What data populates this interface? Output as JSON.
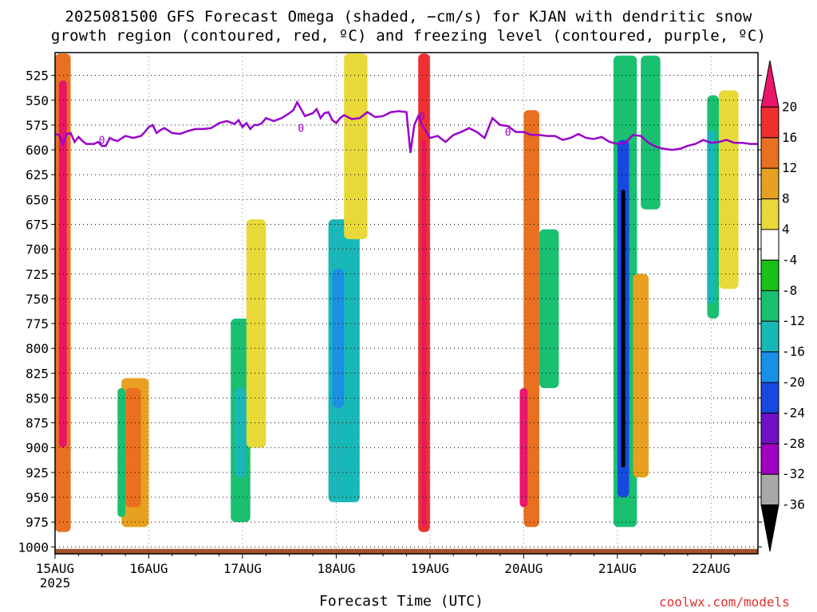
{
  "title_line1": "2025081500 GFS Forecast Omega (shaded, −cm/s) for KJAN with dendritic snow",
  "title_line2": "growth region (contoured, red, ºC) and freezing level (contoured, purple, ºC)",
  "xlabel": "Forecast Time (UTC)",
  "credit": "coolwx.com/models",
  "chart_data": {
    "type": "heatmap",
    "title": "2025081500 GFS Forecast Omega (shaded, −cm/s) for KJAN with dendritic snow growth region (contoured, red, ºC) and freezing level (contoured, purple, ºC)",
    "xlabel": "Forecast Time (UTC)",
    "ylabel": "",
    "x_ticks": [
      "15AUG",
      "16AUG",
      "17AUG",
      "18AUG",
      "19AUG",
      "20AUG",
      "21AUG",
      "22AUG"
    ],
    "x_year_label": "2025",
    "x_range_hours": [
      0,
      180
    ],
    "y_ticks": [
      525,
      550,
      575,
      600,
      625,
      650,
      675,
      700,
      725,
      750,
      775,
      800,
      825,
      850,
      875,
      900,
      925,
      950,
      975,
      1000
    ],
    "ylim": [
      1007,
      502
    ],
    "y_reversed": true,
    "grid": true,
    "colorbar": {
      "labels": [
        20,
        16,
        12,
        8,
        4,
        -4,
        -8,
        -12,
        -16,
        -20,
        -24,
        -28,
        -32,
        -36
      ],
      "colors": [
        "#e8156b",
        "#f03030",
        "#e87020",
        "#e8a020",
        "#e8d838",
        "#ffffff",
        "#18c018",
        "#18c070",
        "#18b8b8",
        "#1890e8",
        "#1848e0",
        "#7010c8",
        "#a000c0",
        "#a8a8a8",
        "#000000"
      ]
    },
    "freezing_level": {
      "label": "0",
      "color": "#9900cc",
      "hours": [
        0,
        1,
        2,
        3,
        4,
        5,
        6,
        7,
        8,
        9,
        10,
        11,
        12,
        13,
        14,
        15,
        16,
        18,
        20,
        22,
        23,
        24,
        25,
        26,
        27,
        28,
        30,
        32,
        34,
        36,
        38,
        40,
        42,
        44,
        46,
        47,
        48,
        49,
        50,
        51,
        52,
        53,
        54,
        56,
        58,
        60,
        61,
        62,
        64,
        66,
        67,
        68,
        69,
        70,
        71,
        72,
        73,
        74,
        76,
        78,
        80,
        82,
        84,
        86,
        88,
        90,
        91,
        92,
        93,
        94,
        96,
        98,
        100,
        102,
        104,
        106,
        108,
        110,
        112,
        114,
        116,
        118,
        120,
        122,
        124,
        126,
        128,
        130,
        132,
        134,
        136,
        138,
        140,
        142,
        144,
        146,
        148,
        150,
        152,
        154,
        156,
        158,
        160,
        162,
        164,
        166,
        168,
        170,
        172,
        174,
        176,
        178,
        180
      ],
      "pressure_hPa": [
        584,
        585,
        594,
        584,
        583,
        592,
        587,
        591,
        594,
        594,
        594,
        592,
        596,
        596,
        588,
        590,
        591,
        586,
        588,
        586,
        582,
        577,
        575,
        583,
        580,
        578,
        583,
        584,
        581,
        579,
        579,
        578,
        573,
        571,
        574,
        570,
        577,
        573,
        579,
        575,
        575,
        573,
        568,
        571,
        568,
        563,
        560,
        552,
        566,
        563,
        559,
        568,
        563,
        562,
        570,
        573,
        568,
        565,
        569,
        568,
        562,
        567,
        566,
        562,
        561,
        562,
        603,
        575,
        566,
        575,
        588,
        586,
        592,
        585,
        582,
        578,
        582,
        588,
        568,
        575,
        576,
        582,
        582,
        585,
        585,
        586,
        586,
        590,
        588,
        584,
        588,
        589,
        587,
        592,
        594,
        593,
        585,
        586,
        593,
        597,
        599,
        600,
        599,
        596,
        594,
        590,
        593,
        592,
        590,
        593,
        593,
        594,
        594
      ]
    },
    "regions_note": "Shaded omega regions (cm/s, negative = rising motion) with embedded dendritic snow growth contours in red",
    "regions": [
      {
        "hour_range": [
          0,
          4
        ],
        "p_range": [
          503,
          985
        ],
        "value": 12
      },
      {
        "hour_range": [
          1,
          3
        ],
        "p_range": [
          530,
          900
        ],
        "value": 20
      },
      {
        "hour_range": [
          17,
          24
        ],
        "p_range": [
          830,
          980
        ],
        "value": 8
      },
      {
        "hour_range": [
          18,
          22
        ],
        "p_range": [
          840,
          960
        ],
        "value": 12
      },
      {
        "hour_range": [
          16,
          18
        ],
        "p_range": [
          840,
          970
        ],
        "value": -8
      },
      {
        "hour_range": [
          45,
          50
        ],
        "p_range": [
          770,
          975
        ],
        "value": -8
      },
      {
        "hour_range": [
          46,
          49
        ],
        "p_range": [
          840,
          930
        ],
        "value": -12
      },
      {
        "hour_range": [
          49,
          54
        ],
        "p_range": [
          670,
          900
        ],
        "value": 4
      },
      {
        "hour_range": [
          70,
          78
        ],
        "p_range": [
          670,
          955
        ],
        "value": -12
      },
      {
        "hour_range": [
          71,
          74
        ],
        "p_range": [
          720,
          860
        ],
        "value": -16
      },
      {
        "hour_range": [
          74,
          80
        ],
        "p_range": [
          503,
          690
        ],
        "value": 4
      },
      {
        "hour_range": [
          93,
          96
        ],
        "p_range": [
          503,
          985
        ],
        "value": 16
      },
      {
        "hour_range": [
          94,
          95
        ],
        "p_range": [
          590,
          980
        ],
        "value": 20
      },
      {
        "hour_range": [
          120,
          124
        ],
        "p_range": [
          560,
          980
        ],
        "value": 12
      },
      {
        "hour_range": [
          119,
          121
        ],
        "p_range": [
          840,
          960
        ],
        "value": 20
      },
      {
        "hour_range": [
          124,
          129
        ],
        "p_range": [
          680,
          840
        ],
        "value": -8
      },
      {
        "hour_range": [
          143,
          149
        ],
        "p_range": [
          505,
          980
        ],
        "value": -8
      },
      {
        "hour_range": [
          144,
          147
        ],
        "p_range": [
          590,
          950
        ],
        "value": -20
      },
      {
        "hour_range": [
          145,
          146
        ],
        "p_range": [
          640,
          920
        ],
        "value": -36
      },
      {
        "hour_range": [
          148,
          152
        ],
        "p_range": [
          725,
          930
        ],
        "value": 8
      },
      {
        "hour_range": [
          150,
          155
        ],
        "p_range": [
          505,
          660
        ],
        "value": -8
      },
      {
        "hour_range": [
          167,
          170
        ],
        "p_range": [
          545,
          770
        ],
        "value": -8
      },
      {
        "hour_range": [
          167,
          169
        ],
        "p_range": [
          580,
          755
        ],
        "value": -12
      },
      {
        "hour_range": [
          170,
          175
        ],
        "p_range": [
          540,
          740
        ],
        "value": 4
      }
    ]
  }
}
